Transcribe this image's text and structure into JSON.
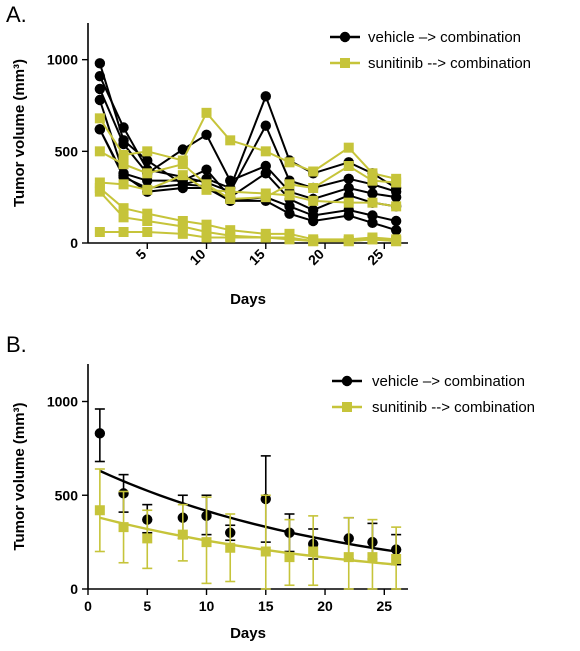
{
  "colors": {
    "vehicle": "#000000",
    "sunitinib": "#c6c43a",
    "axis": "#000000"
  },
  "chart_data": [
    {
      "panel_label": "A.",
      "type": "line",
      "xlabel": "Days",
      "ylabel": "Tumor volume (mm³)",
      "xlim": [
        0,
        27
      ],
      "ylim": [
        0,
        1200
      ],
      "xticks": [
        5,
        10,
        15,
        20,
        25
      ],
      "yticks": [
        0,
        500,
        1000
      ],
      "x": [
        1,
        3,
        5,
        8,
        10,
        12,
        15,
        17,
        19,
        22,
        24,
        26
      ],
      "legend": [
        "vehicle –> combination",
        "sunitinib --> combination"
      ],
      "legend_position": "top-right",
      "groups": [
        {
          "color_key": "vehicle",
          "marker": "circle",
          "animals": [
            [
              980,
              560,
              450,
              320,
              350,
              300,
              800,
              450,
              380,
              440,
              380,
              300
            ],
            [
              910,
              630,
              400,
              360,
              330,
              280,
              640,
              340,
              300,
              350,
              320,
              280
            ],
            [
              840,
              540,
              380,
              510,
              590,
              340,
              420,
              280,
              240,
              300,
              270,
              250
            ],
            [
              780,
              380,
              340,
              340,
              400,
              250,
              380,
              240,
              180,
              260,
              220,
              200
            ],
            [
              620,
              360,
              300,
              320,
              310,
              230,
              250,
              200,
              150,
              180,
              150,
              120
            ],
            [
              620,
              370,
              280,
              300,
              300,
              230,
              230,
              160,
              120,
              150,
              110,
              70
            ]
          ]
        },
        {
          "color_key": "sunitinib",
          "marker": "square",
          "animals": [
            [
              680,
              480,
              500,
              450,
              710,
              560,
              500,
              440,
              390,
              520,
              380,
              350
            ],
            [
              500,
              430,
              380,
              430,
              320,
              240,
              250,
              320,
              300,
              420,
              340,
              330
            ],
            [
              330,
              320,
              290,
              370,
              290,
              280,
              270,
              260,
              230,
              220,
              220,
              200
            ],
            [
              300,
              190,
              160,
              120,
              100,
              70,
              50,
              50,
              20,
              20,
              30,
              20
            ],
            [
              280,
              140,
              120,
              90,
              60,
              40,
              30,
              30,
              10,
              10,
              20,
              10
            ],
            [
              60,
              60,
              60,
              50,
              30,
              30,
              30,
              20,
              10,
              10,
              20,
              10
            ]
          ]
        }
      ]
    },
    {
      "panel_label": "B.",
      "type": "scatter",
      "xlabel": "Days",
      "ylabel": "Tumor volume (mm³)",
      "xlim": [
        0,
        27
      ],
      "ylim": [
        0,
        1200
      ],
      "xticks": [
        0,
        5,
        10,
        15,
        20,
        25
      ],
      "yticks": [
        0,
        500,
        1000
      ],
      "legend": [
        "vehicle –> combination",
        "sunitinib --> combination"
      ],
      "legend_position": "top-right",
      "series": [
        {
          "name": "vehicle –> combination",
          "color_key": "vehicle",
          "marker": "circle",
          "x": [
            1,
            3,
            5,
            8,
            10,
            12,
            15,
            17,
            19,
            22,
            24,
            26
          ],
          "mean": [
            830,
            510,
            370,
            380,
            390,
            300,
            480,
            300,
            240,
            270,
            250,
            210
          ],
          "err_low": [
            680,
            410,
            300,
            270,
            290,
            260,
            250,
            200,
            160,
            160,
            160,
            130
          ],
          "err_high": [
            960,
            610,
            450,
            500,
            500,
            340,
            710,
            400,
            320,
            380,
            350,
            290
          ],
          "fit": {
            "x": [
              1,
              26
            ],
            "y0": 630,
            "y1": 200
          }
        },
        {
          "name": "sunitinib --> combination",
          "color_key": "sunitinib",
          "marker": "square",
          "x": [
            1,
            3,
            5,
            8,
            10,
            12,
            15,
            17,
            19,
            22,
            24,
            26
          ],
          "mean": [
            420,
            330,
            270,
            290,
            250,
            220,
            200,
            170,
            200,
            170,
            170,
            160
          ],
          "err_low": [
            200,
            140,
            110,
            150,
            30,
            40,
            0,
            20,
            20,
            0,
            0,
            0
          ],
          "err_high": [
            640,
            520,
            420,
            450,
            490,
            400,
            500,
            370,
            390,
            380,
            370,
            330
          ],
          "fit": {
            "x": [
              1,
              26
            ],
            "y0": 380,
            "y1": 130
          }
        }
      ]
    }
  ]
}
